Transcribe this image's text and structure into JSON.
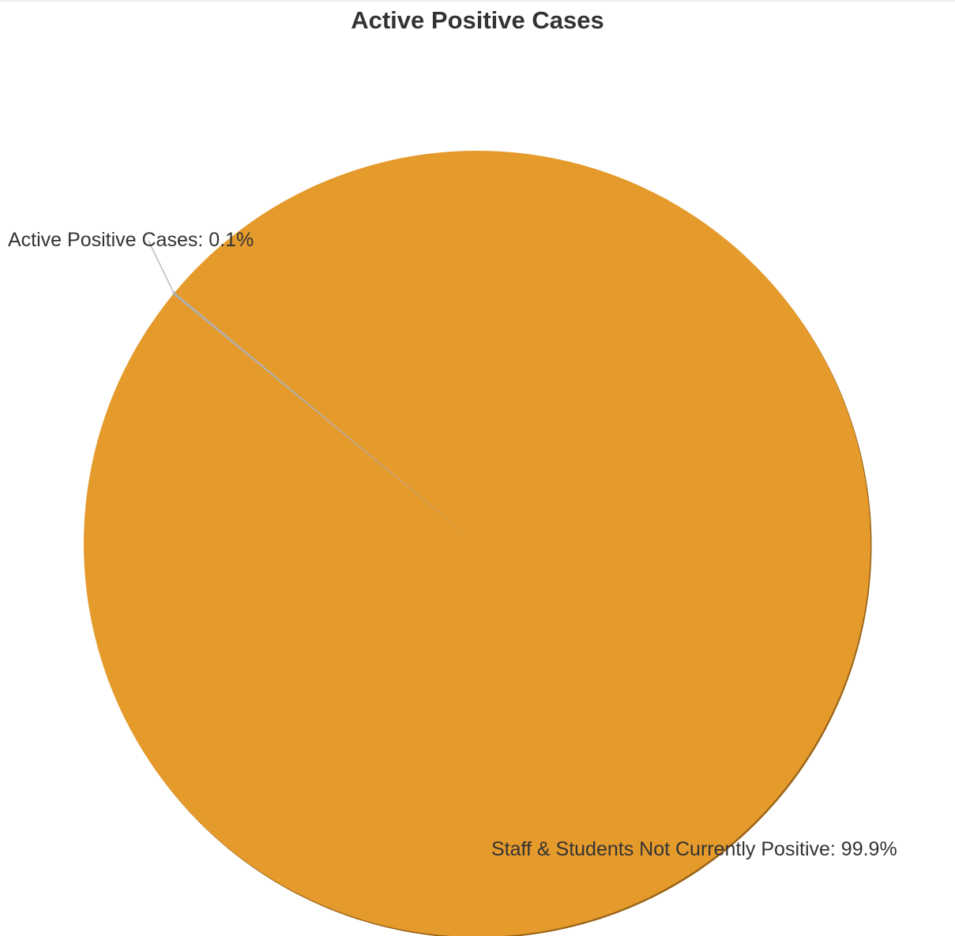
{
  "chart_data": {
    "type": "pie",
    "title": "Active Positive Cases",
    "slices": [
      {
        "name": "Active Positive Cases",
        "percent": 0.1,
        "label": "Active Positive Cases: 0.1%",
        "color": "#b0b0b0"
      },
      {
        "name": "Staff & Students Not Currently Positive",
        "percent": 99.9,
        "label": "Staff & Students Not Currently Positive: 99.9%",
        "color": "#e59a2c"
      }
    ],
    "legend": "none"
  },
  "colors": {
    "title": "#333333",
    "label_text": "#333333",
    "shadow": "#9a6418",
    "connector": "#b8bcc4"
  }
}
